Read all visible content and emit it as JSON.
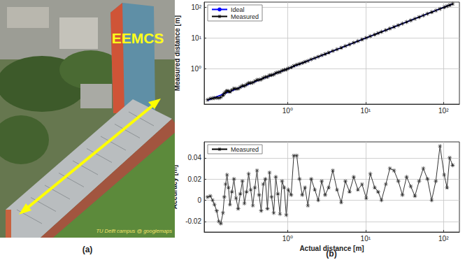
{
  "chart_data": [
    {
      "type": "line",
      "ylabel": "Measured distance [m]",
      "log": true,
      "grid": true,
      "legend": "upper left",
      "xlim": [
        0.085,
        160
      ],
      "ylim": [
        0.07,
        150
      ],
      "xticks": [
        {
          "value": 1,
          "label": "10⁰"
        },
        {
          "value": 10,
          "label": "10¹"
        },
        {
          "value": 100,
          "label": "10²"
        }
      ],
      "yticks": [
        {
          "value": 1,
          "label": "10⁰"
        },
        {
          "value": 10,
          "label": "10¹"
        },
        {
          "value": 100,
          "label": "10²"
        }
      ],
      "series": [
        {
          "name": "Ideal",
          "color": "#0000ff",
          "marker": "none",
          "line_style": "solid",
          "x": [
            0.094,
            131
          ],
          "values": [
            0.094,
            131
          ]
        },
        {
          "name": "Measured",
          "color": "#000000",
          "marker": "star",
          "line_style": "solid",
          "x": [
            0.094,
            0.102,
            0.109,
            0.115,
            0.123,
            0.131,
            0.139,
            0.148,
            0.154,
            0.16,
            0.167,
            0.174,
            0.182,
            0.193,
            0.205,
            0.218,
            0.232,
            0.247,
            0.263,
            0.279,
            0.297,
            0.316,
            0.336,
            0.358,
            0.38,
            0.405,
            0.431,
            0.458,
            0.487,
            0.518,
            0.551,
            0.586,
            0.623,
            0.663,
            0.705,
            0.75,
            0.798,
            0.849,
            0.903,
            0.96,
            1.02,
            1.11,
            1.2,
            1.31,
            1.42,
            1.54,
            1.67,
            1.82,
            2.01,
            2.23,
            2.47,
            2.74,
            3.03,
            3.36,
            3.8,
            4.3,
            4.87,
            5.51,
            6.23,
            7.05,
            7.97,
            9.02,
            10.2,
            11.5,
            13.1,
            14.5,
            16.0,
            18.2,
            20.5,
            23.2,
            26.3,
            29.7,
            33.6,
            38.0,
            43.0,
            48.7,
            55.1,
            62.3,
            70.5,
            79.7,
            90.2,
            102,
            111,
            120,
            131
          ],
          "values": [
            0.097,
            0.106,
            0.109,
            0.111,
            0.113,
            0.111,
            0.117,
            0.136,
            0.157,
            0.175,
            0.191,
            0.186,
            0.178,
            0.201,
            0.225,
            0.22,
            0.224,
            0.253,
            0.281,
            0.276,
            0.305,
            0.341,
            0.346,
            0.353,
            0.392,
            0.433,
            0.436,
            0.448,
            0.502,
            0.538,
            0.543,
            0.612,
            0.626,
            0.651,
            0.727,
            0.756,
            0.785,
            0.867,
            0.915,
            0.946,
            1.03,
            1.115,
            1.242,
            1.352,
            1.44,
            1.545,
            1.682,
            1.815,
            2.03,
            2.24,
            2.47,
            2.758,
            3.035,
            3.372,
            3.828,
            4.31,
            4.868,
            5.528,
            6.238,
            7.072,
            7.98,
            9.035,
            10.202,
            11.525,
            13.112,
            14.508,
            16.0,
            18.215,
            20.53,
            23.228,
            26.318,
            29.705,
            33.622,
            38.013,
            43.004,
            48.718,
            55.13,
            62.32,
            70.5,
            79.718,
            90.251,
            102.024,
            111.012,
            120.04,
            131.033
          ]
        }
      ]
    },
    {
      "type": "line",
      "xlabel": "Actual distance [m]",
      "ylabel": "Accuracy [m]",
      "log": "x",
      "grid": true,
      "legend": "upper left",
      "xlim": [
        0.085,
        160
      ],
      "ylim": [
        -0.03,
        0.055
      ],
      "xticks": [
        {
          "value": 1,
          "label": "10⁰"
        },
        {
          "value": 10,
          "label": "10¹"
        },
        {
          "value": 100,
          "label": "10²"
        }
      ],
      "yticks": [
        -0.02,
        0,
        0.02,
        0.04
      ],
      "series": [
        {
          "name": "Measured",
          "color": "#333333",
          "marker": "star",
          "line_style": "solid",
          "x": [
            0.094,
            0.102,
            0.109,
            0.115,
            0.123,
            0.131,
            0.139,
            0.148,
            0.154,
            0.16,
            0.167,
            0.174,
            0.182,
            0.193,
            0.205,
            0.218,
            0.232,
            0.247,
            0.263,
            0.279,
            0.297,
            0.316,
            0.336,
            0.358,
            0.38,
            0.405,
            0.431,
            0.458,
            0.487,
            0.518,
            0.551,
            0.586,
            0.623,
            0.663,
            0.705,
            0.75,
            0.798,
            0.849,
            0.903,
            0.96,
            1.02,
            1.11,
            1.2,
            1.31,
            1.42,
            1.54,
            1.67,
            1.82,
            2.01,
            2.23,
            2.47,
            2.74,
            3.03,
            3.36,
            3.8,
            4.3,
            4.87,
            5.51,
            6.23,
            7.05,
            7.97,
            9.02,
            10.2,
            11.5,
            13.1,
            14.5,
            16.0,
            18.2,
            20.5,
            23.2,
            26.3,
            29.7,
            33.6,
            38.0,
            43.0,
            48.7,
            55.1,
            62.3,
            70.5,
            79.7,
            90.2,
            102,
            111,
            120,
            131
          ],
          "values": [
            0.003,
            0.004,
            0.0,
            -0.004,
            -0.01,
            -0.02,
            -0.022,
            -0.012,
            0.003,
            0.015,
            0.024,
            0.012,
            -0.004,
            0.008,
            0.02,
            0.002,
            -0.008,
            0.006,
            0.018,
            -0.003,
            0.008,
            0.025,
            0.01,
            -0.005,
            0.012,
            0.028,
            0.005,
            -0.01,
            0.015,
            0.02,
            -0.008,
            0.026,
            0.003,
            -0.012,
            0.022,
            0.006,
            -0.013,
            0.018,
            0.012,
            -0.014,
            0.01,
            0.005,
            0.042,
            0.042,
            0.02,
            0.005,
            0.012,
            -0.005,
            0.02,
            0.01,
            0.0,
            0.018,
            0.005,
            0.012,
            0.028,
            0.01,
            -0.002,
            0.018,
            0.008,
            0.022,
            0.01,
            0.015,
            0.002,
            0.025,
            0.012,
            0.008,
            0.0,
            0.015,
            0.03,
            0.028,
            0.018,
            0.005,
            0.022,
            0.013,
            0.004,
            0.018,
            0.03,
            0.02,
            0.0,
            0.018,
            0.051,
            0.024,
            0.012,
            0.04,
            0.033
          ]
        }
      ]
    }
  ],
  "photo": {
    "label": "EEMCS",
    "credit": "TU Delft campus @ googlemaps"
  },
  "panel_labels": [
    "(a)",
    "(b)"
  ]
}
